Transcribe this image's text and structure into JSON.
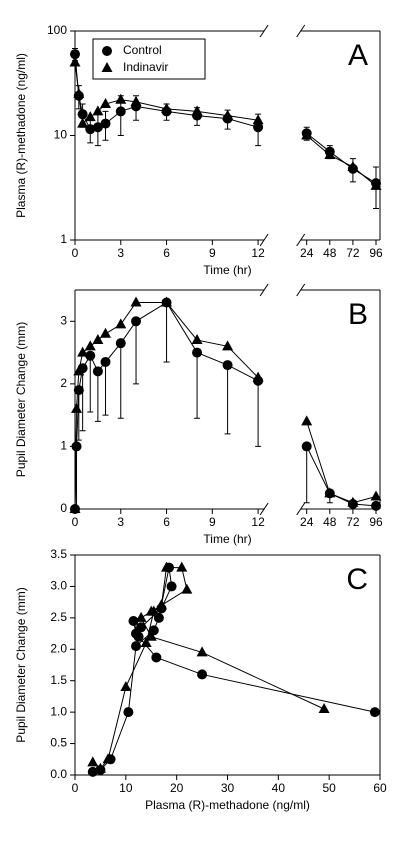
{
  "chart_data": [
    {
      "type": "line",
      "label": "A",
      "xlabel": "Time (hr)",
      "ylabel": "Plasma (R)-methadone (ng/ml)",
      "x": [
        0,
        0.25,
        0.5,
        1,
        1.5,
        2,
        3,
        4,
        6,
        8,
        10,
        12,
        24,
        48,
        72,
        96
      ],
      "xlim": [
        0,
        96
      ],
      "xticks": [
        0,
        3,
        6,
        9,
        12,
        24,
        48,
        72,
        96
      ],
      "x_break": {
        "from": 12,
        "to": 24
      },
      "ylim": [
        1,
        100
      ],
      "yticks": [
        1,
        10,
        100
      ],
      "ylog": true,
      "legend": "upper left",
      "series": [
        {
          "name": "Control",
          "color": "#000000",
          "marker": "circle",
          "values": [
            60,
            24,
            16,
            11.5,
            12,
            13,
            17,
            19,
            17,
            15.5,
            14.5,
            12,
            10.5,
            7,
            4.8,
            3.5
          ],
          "errors": [
            8,
            6,
            4,
            3,
            4,
            4,
            7,
            5,
            3,
            3,
            3,
            4,
            1.5,
            1,
            1.2,
            1.5
          ],
          "error_direction": "both"
        },
        {
          "name": "Indinavir",
          "color": "#000000",
          "marker": "triangle",
          "values": [
            50,
            25,
            13,
            15,
            17,
            20,
            22,
            21,
            18,
            17,
            15.5,
            14,
            10,
            6.5,
            5,
            3.3
          ]
        }
      ]
    },
    {
      "type": "line",
      "label": "B",
      "xlabel": "Time (hr)",
      "ylabel": "Pupil Diameter Change (mm)",
      "x": [
        0,
        0.1,
        0.25,
        0.5,
        1,
        1.5,
        2,
        3,
        4,
        6,
        8,
        10,
        12,
        24,
        48,
        72,
        96
      ],
      "xlim": [
        0,
        96
      ],
      "xticks": [
        0,
        3,
        6,
        9,
        12,
        24,
        48,
        72,
        96
      ],
      "x_break": {
        "from": 12,
        "to": 24
      },
      "ylim": [
        0,
        3.5
      ],
      "yticks": [
        0,
        1,
        2,
        3
      ],
      "series": [
        {
          "name": "Control",
          "color": "#000000",
          "marker": "circle",
          "values": [
            0,
            1.0,
            1.9,
            2.25,
            2.45,
            2.2,
            2.35,
            2.65,
            3.0,
            3.3,
            2.5,
            2.3,
            2.05,
            1.0,
            0.25,
            0.08,
            0.05
          ],
          "errors": [
            0,
            1.0,
            0.8,
            1.0,
            0.9,
            0.8,
            0.85,
            1.2,
            1.0,
            0.95,
            1.05,
            1.1,
            1.05,
            0.9,
            0.15,
            0.05,
            0.05
          ],
          "error_direction": "down"
        },
        {
          "name": "Indinavir",
          "color": "#000000",
          "marker": "triangle",
          "values": [
            0,
            1.6,
            2.2,
            2.5,
            2.6,
            2.7,
            2.8,
            2.95,
            3.3,
            3.3,
            2.7,
            2.6,
            2.1,
            1.4,
            0.25,
            0.1,
            0.2
          ]
        }
      ]
    },
    {
      "type": "line",
      "label": "C",
      "xlabel": "Plasma (R)-methadone (ng/ml)",
      "ylabel": "Pupil Diameter Change (mm)",
      "xlim": [
        0,
        60
      ],
      "xticks": [
        0,
        10,
        20,
        30,
        40,
        50,
        60
      ],
      "ylim": [
        0,
        3.5
      ],
      "yticks": [
        {
          "value": 0,
          "label": "0.0"
        },
        {
          "value": 0.5,
          "label": "0.5"
        },
        {
          "value": 1,
          "label": "1.0"
        },
        {
          "value": 1.5,
          "label": "1.5"
        },
        {
          "value": 2,
          "label": "2.0"
        },
        {
          "value": 2.5,
          "label": "2.5"
        },
        {
          "value": 3,
          "label": "3.0"
        },
        {
          "value": 3.5,
          "label": "3.5"
        }
      ],
      "series": [
        {
          "name": "Control",
          "color": "#000000",
          "marker": "circle",
          "x": [
            59,
            25,
            16,
            12,
            11.5,
            12.5,
            13,
            17,
            19,
            18.5,
            16.5,
            15.5,
            12,
            10.5,
            7,
            5,
            3.5
          ],
          "values": [
            1.0,
            1.6,
            1.87,
            2.25,
            2.45,
            2.2,
            2.35,
            2.65,
            3.0,
            3.3,
            2.5,
            2.3,
            2.05,
            1.0,
            0.25,
            0.08,
            0.05
          ]
        },
        {
          "name": "Indinavir",
          "color": "#000000",
          "marker": "triangle",
          "x": [
            49,
            25,
            15,
            13,
            15,
            17,
            22,
            21,
            18,
            17,
            15.5,
            14,
            10,
            6.5,
            5,
            3.5
          ],
          "values": [
            1.05,
            1.95,
            2.2,
            2.5,
            2.6,
            2.7,
            2.95,
            3.3,
            3.3,
            2.7,
            2.6,
            2.1,
            1.4,
            0.25,
            0.1,
            0.2
          ]
        }
      ]
    }
  ]
}
